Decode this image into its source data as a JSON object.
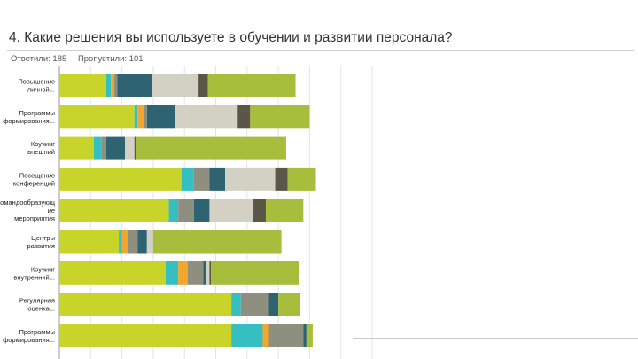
{
  "question": {
    "title": "4. Какие решения вы используете в обучении и развитии персонала?",
    "answered": "Ответили: 185",
    "skipped": "Пропустили: 101"
  },
  "colors": {
    "lime": "#c9d42b",
    "teal": "#36bfc1",
    "orange": "#f2a62e",
    "gray": "#8f8f7f",
    "petrol": "#2e6472",
    "beige": "#d2d1c4",
    "dark": "#5b5747",
    "olive": "#a7bd3c",
    "grid": "#e4e4e4",
    "axis": "#9a9a9a"
  },
  "chart_data": {
    "type": "bar",
    "orientation": "horizontal",
    "stacked": true,
    "title": "",
    "xlabel": "",
    "ylabel": "",
    "xlim": [
      0,
      100
    ],
    "grid": true,
    "legend": "none",
    "categories": [
      [
        "Повышение",
        "личной..."
      ],
      [
        "Программы",
        "формирования..."
      ],
      [
        "Коучинг",
        "внешний"
      ],
      [
        "Посещение",
        "конференций"
      ],
      [
        "Командообразующ",
        "ие",
        "мероприятия"
      ],
      [
        "Центры",
        "развития"
      ],
      [
        "Коучинг",
        "внутренний..."
      ],
      [
        "Регулярная",
        "оценка..."
      ],
      [
        "Программы",
        "формирования..."
      ]
    ],
    "series": [
      {
        "color": "lime",
        "values": [
          15,
          24,
          11,
          39,
          35,
          19,
          34,
          55,
          55
        ]
      },
      {
        "color": "teal",
        "values": [
          1.5,
          1,
          2.5,
          4,
          3,
          1,
          4,
          3,
          10
        ]
      },
      {
        "color": "orange",
        "values": [
          1,
          2,
          0,
          0,
          0,
          2,
          3,
          0,
          2
        ]
      },
      {
        "color": "gray",
        "values": [
          1,
          1,
          1.5,
          5,
          5,
          3,
          5,
          9,
          11
        ]
      },
      {
        "color": "petrol",
        "values": [
          11,
          9,
          6,
          5,
          5,
          3,
          1,
          3,
          1
        ]
      },
      {
        "color": "beige",
        "values": [
          15,
          20,
          3,
          16,
          14,
          2,
          1,
          0,
          0
        ]
      },
      {
        "color": "dark",
        "values": [
          3,
          4,
          0.5,
          4,
          4,
          0,
          0.5,
          0,
          0
        ]
      },
      {
        "color": "olive",
        "values": [
          28,
          19,
          48,
          9,
          12,
          41,
          28,
          7,
          2
        ]
      }
    ]
  }
}
